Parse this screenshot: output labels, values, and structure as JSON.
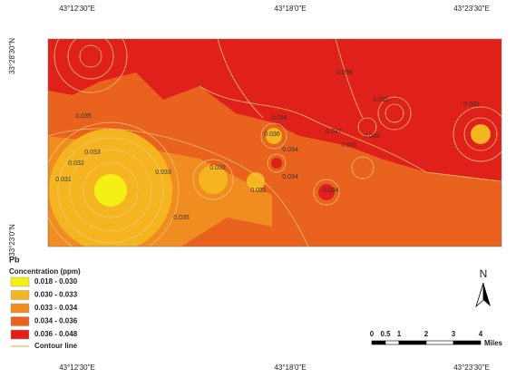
{
  "map": {
    "top_labels": [
      "43°12'30\"E",
      "43°18'0\"E",
      "43°23'30\"E"
    ],
    "bottom_labels": [
      "43°12'30\"E",
      "43°18'0\"E",
      "43°23'30\"E"
    ],
    "left_labels": [
      "33°28'30\"N",
      "33°23'0\"N"
    ],
    "contour_labels": [
      "0.033",
      "0.032",
      "0.031",
      "0.033",
      "0.035",
      "0.035",
      "0.032",
      "0.031",
      "0.034",
      "0.034",
      "0.036",
      "0.038",
      "0.034",
      "0.031",
      "0.033",
      "0.034",
      "0.035",
      "0.037",
      "0.035"
    ],
    "legend": {
      "title": "Pb",
      "subtitle": "Concentration (ppm)",
      "classes": [
        {
          "label": "0.018 - 0.030",
          "color": "#f5f014"
        },
        {
          "label": "0.030 - 0.033",
          "color": "#f5b520"
        },
        {
          "label": "0.033 - 0.034",
          "color": "#f08c20"
        },
        {
          "label": "0.034 - 0.036",
          "color": "#e9621e"
        },
        {
          "label": "0.036 - 0.048",
          "color": "#e0201a"
        }
      ],
      "contour_label": "Contour line",
      "contour_color": "#f5c36e"
    },
    "scale_bar": {
      "ticks": [
        "0",
        "0.5",
        "1",
        "2",
        "3",
        "4"
      ],
      "unit": "Miles"
    },
    "north": "N"
  }
}
